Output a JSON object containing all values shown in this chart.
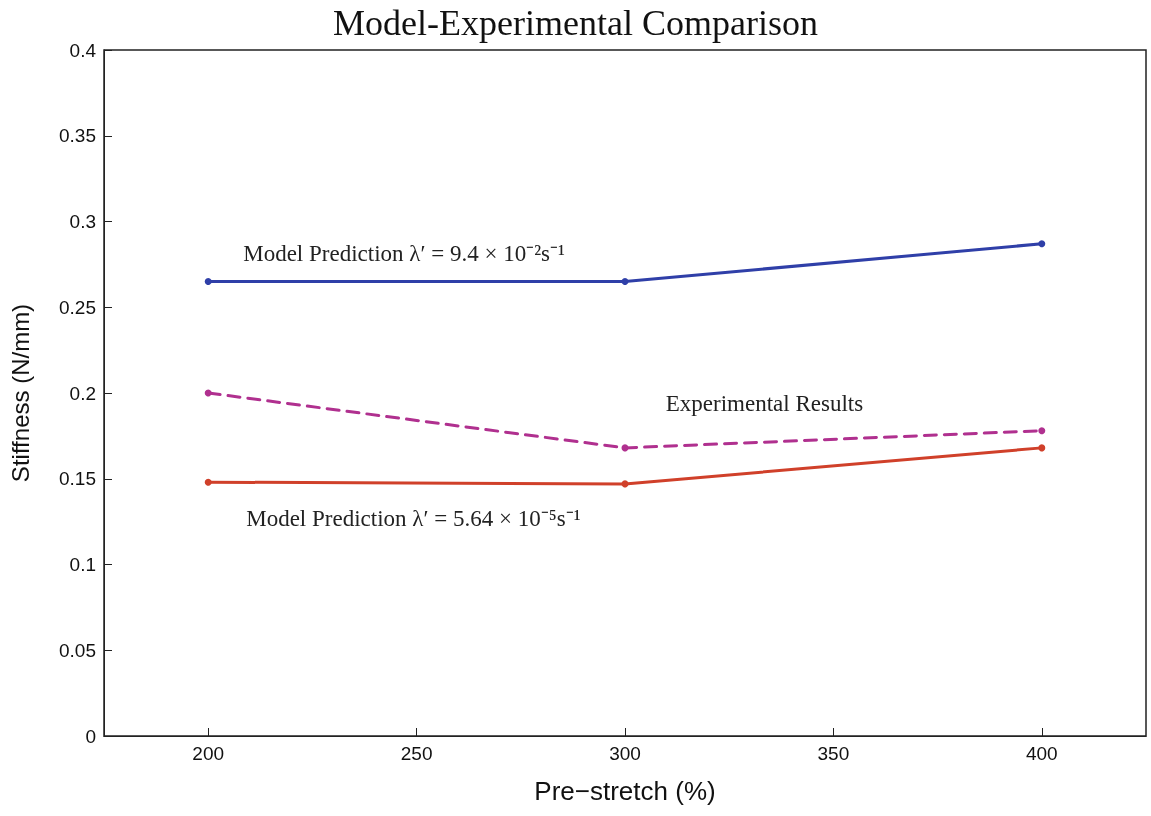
{
  "chart_data": {
    "type": "line",
    "title": "Model-Experimental Comparison",
    "xlabel": "Pre−stretch (%)",
    "ylabel": "Stiffness (N/mm)",
    "x": [
      200,
      300,
      400
    ],
    "series": [
      {
        "name": "Model Prediction λ′ = 9.4 × 10⁻²s⁻¹",
        "color": "#2f3fa8",
        "values": [
          0.265,
          0.265,
          0.287
        ],
        "line_style": "solid"
      },
      {
        "name": "Experimental Results",
        "color": "#b0308f",
        "values": [
          0.2,
          0.168,
          0.178
        ],
        "line_style": "dashed"
      },
      {
        "name": "Model Prediction λ′ = 5.64 × 10⁻⁵s⁻¹",
        "color": "#d0402a",
        "values": [
          0.148,
          0.147,
          0.168
        ],
        "line_style": "solid"
      }
    ],
    "xlim": [
      175,
      425
    ],
    "xticks": [
      200,
      250,
      300,
      350,
      400
    ],
    "ylim": [
      0,
      0.4
    ],
    "yticks": [
      0,
      0.05,
      0.1,
      0.15,
      0.2,
      0.25,
      0.3,
      0.35,
      0.4
    ],
    "grid": false,
    "legend": false,
    "marker": "circle"
  }
}
